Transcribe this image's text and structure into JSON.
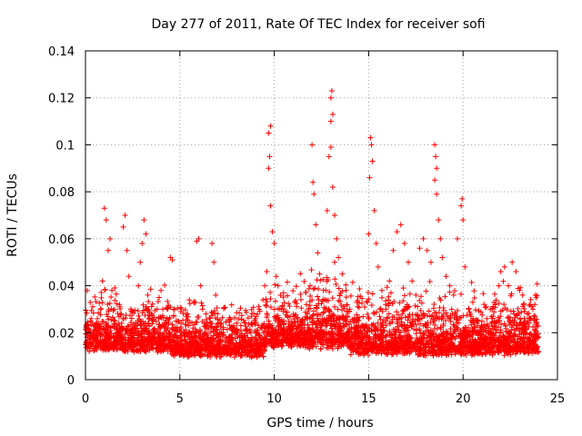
{
  "chart_data": {
    "type": "scatter",
    "title": "Day 277 of 2011, Rate Of TEC Index for receiver sofi",
    "xlabel": "GPS time / hours",
    "ylabel": "ROTI / TECUs",
    "xlim": [
      0,
      25
    ],
    "ylim": [
      0,
      0.14
    ],
    "xticks": [
      0,
      5,
      10,
      15,
      20,
      25
    ],
    "xtick_labels": [
      "0",
      "5",
      "10",
      "15",
      "20",
      "25"
    ],
    "yticks": [
      0,
      0.02,
      0.04,
      0.06,
      0.08,
      0.1,
      0.12,
      0.14
    ],
    "ytick_labels": [
      "0",
      "0.02",
      "0.04",
      "0.06",
      "0.08",
      "0.1",
      "0.12",
      "0.14"
    ],
    "grid": true,
    "marker": "+",
    "series": [
      {
        "color": "#ff0000",
        "points": [
          [
            0.0,
            0.015
          ],
          [
            0.1,
            0.022
          ],
          [
            0.2,
            0.012
          ],
          [
            0.3,
            0.026
          ],
          [
            0.4,
            0.018
          ],
          [
            0.5,
            0.014
          ],
          [
            0.6,
            0.02
          ],
          [
            0.7,
            0.024
          ],
          [
            0.8,
            0.03
          ],
          [
            0.9,
            0.042
          ],
          [
            1.0,
            0.073
          ],
          [
            1.1,
            0.068
          ],
          [
            1.2,
            0.055
          ],
          [
            1.3,
            0.06
          ],
          [
            1.4,
            0.038
          ],
          [
            1.5,
            0.025
          ],
          [
            1.6,
            0.018
          ],
          [
            1.7,
            0.022
          ],
          [
            1.8,
            0.032
          ],
          [
            1.9,
            0.028
          ],
          [
            2.0,
            0.065
          ],
          [
            2.1,
            0.07
          ],
          [
            2.2,
            0.055
          ],
          [
            2.3,
            0.044
          ],
          [
            2.4,
            0.03
          ],
          [
            2.5,
            0.018
          ],
          [
            2.6,
            0.022
          ],
          [
            2.7,
            0.02
          ],
          [
            2.8,
            0.04
          ],
          [
            2.9,
            0.05
          ],
          [
            3.0,
            0.058
          ],
          [
            3.1,
            0.068
          ],
          [
            3.2,
            0.062
          ],
          [
            3.3,
            0.036
          ],
          [
            3.4,
            0.02
          ],
          [
            3.5,
            0.028
          ],
          [
            3.6,
            0.025
          ],
          [
            3.7,
            0.018
          ],
          [
            3.8,
            0.03
          ],
          [
            3.9,
            0.035
          ],
          [
            4.0,
            0.038
          ],
          [
            4.1,
            0.03
          ],
          [
            4.2,
            0.022
          ],
          [
            4.3,
            0.018
          ],
          [
            4.4,
            0.02
          ],
          [
            4.5,
            0.052
          ],
          [
            4.6,
            0.051
          ],
          [
            4.7,
            0.03
          ],
          [
            4.8,
            0.025
          ],
          [
            4.9,
            0.018
          ],
          [
            5.0,
            0.014
          ],
          [
            5.2,
            0.02
          ],
          [
            5.4,
            0.028
          ],
          [
            5.5,
            0.034
          ],
          [
            5.7,
            0.022
          ],
          [
            5.8,
            0.018
          ],
          [
            5.9,
            0.059
          ],
          [
            6.0,
            0.06
          ],
          [
            6.1,
            0.04
          ],
          [
            6.2,
            0.03
          ],
          [
            6.4,
            0.022
          ],
          [
            6.5,
            0.018
          ],
          [
            6.6,
            0.016
          ],
          [
            6.7,
            0.058
          ],
          [
            6.8,
            0.05
          ],
          [
            6.9,
            0.036
          ],
          [
            7.0,
            0.028
          ],
          [
            7.2,
            0.02
          ],
          [
            7.4,
            0.016
          ],
          [
            7.6,
            0.018
          ],
          [
            7.8,
            0.022
          ],
          [
            8.0,
            0.02
          ],
          [
            8.2,
            0.014
          ],
          [
            8.4,
            0.016
          ],
          [
            8.6,
            0.018
          ],
          [
            8.8,
            0.024
          ],
          [
            9.0,
            0.026
          ],
          [
            9.2,
            0.03
          ],
          [
            9.4,
            0.034
          ],
          [
            9.5,
            0.04
          ],
          [
            9.6,
            0.046
          ],
          [
            9.7,
            0.105
          ],
          [
            9.8,
            0.108
          ],
          [
            9.75,
            0.095
          ],
          [
            9.7,
            0.09
          ],
          [
            9.8,
            0.074
          ],
          [
            9.9,
            0.063
          ],
          [
            10.0,
            0.058
          ],
          [
            10.1,
            0.044
          ],
          [
            10.2,
            0.04
          ],
          [
            10.3,
            0.03
          ],
          [
            10.5,
            0.025
          ],
          [
            10.7,
            0.02
          ],
          [
            10.9,
            0.018
          ],
          [
            11.1,
            0.016
          ],
          [
            11.3,
            0.02
          ],
          [
            11.5,
            0.024
          ],
          [
            11.7,
            0.032
          ],
          [
            11.9,
            0.04
          ],
          [
            12.0,
            0.1
          ],
          [
            12.05,
            0.084
          ],
          [
            12.1,
            0.079
          ],
          [
            12.2,
            0.066
          ],
          [
            12.3,
            0.054
          ],
          [
            12.4,
            0.045
          ],
          [
            12.6,
            0.038
          ],
          [
            12.8,
            0.072
          ],
          [
            12.9,
            0.095
          ],
          [
            13.0,
            0.12
          ],
          [
            13.05,
            0.123
          ],
          [
            13.1,
            0.113
          ],
          [
            13.0,
            0.11
          ],
          [
            13.0,
            0.099
          ],
          [
            13.1,
            0.082
          ],
          [
            13.2,
            0.07
          ],
          [
            13.3,
            0.06
          ],
          [
            13.4,
            0.052
          ],
          [
            13.6,
            0.045
          ],
          [
            13.8,
            0.038
          ],
          [
            14.0,
            0.03
          ],
          [
            14.2,
            0.025
          ],
          [
            14.4,
            0.02
          ],
          [
            14.6,
            0.018
          ],
          [
            14.8,
            0.022
          ],
          [
            15.0,
            0.062
          ],
          [
            15.05,
            0.086
          ],
          [
            15.1,
            0.103
          ],
          [
            15.15,
            0.1
          ],
          [
            15.2,
            0.093
          ],
          [
            15.3,
            0.072
          ],
          [
            15.4,
            0.058
          ],
          [
            15.5,
            0.048
          ],
          [
            15.7,
            0.038
          ],
          [
            15.9,
            0.032
          ],
          [
            16.1,
            0.042
          ],
          [
            16.3,
            0.055
          ],
          [
            16.5,
            0.063
          ],
          [
            16.7,
            0.066
          ],
          [
            16.9,
            0.058
          ],
          [
            17.1,
            0.05
          ],
          [
            17.3,
            0.042
          ],
          [
            17.5,
            0.036
          ],
          [
            17.7,
            0.056
          ],
          [
            17.9,
            0.06
          ],
          [
            18.1,
            0.055
          ],
          [
            18.3,
            0.05
          ],
          [
            18.5,
            0.1
          ],
          [
            18.55,
            0.095
          ],
          [
            18.6,
            0.09
          ],
          [
            18.5,
            0.085
          ],
          [
            18.6,
            0.079
          ],
          [
            18.7,
            0.068
          ],
          [
            18.8,
            0.06
          ],
          [
            18.9,
            0.052
          ],
          [
            19.1,
            0.044
          ],
          [
            19.3,
            0.04
          ],
          [
            19.5,
            0.036
          ],
          [
            19.7,
            0.06
          ],
          [
            19.9,
            0.074
          ],
          [
            19.95,
            0.077
          ],
          [
            20.0,
            0.068
          ],
          [
            20.1,
            0.048
          ],
          [
            20.3,
            0.03
          ],
          [
            20.5,
            0.025
          ],
          [
            20.7,
            0.02
          ],
          [
            20.9,
            0.018
          ],
          [
            21.1,
            0.016
          ],
          [
            21.3,
            0.02
          ],
          [
            21.5,
            0.024
          ],
          [
            21.7,
            0.032
          ],
          [
            21.9,
            0.04
          ],
          [
            22.0,
            0.046
          ],
          [
            22.2,
            0.048
          ],
          [
            22.4,
            0.04
          ],
          [
            22.6,
            0.05
          ],
          [
            22.8,
            0.046
          ],
          [
            23.0,
            0.038
          ],
          [
            23.2,
            0.032
          ],
          [
            23.4,
            0.028
          ],
          [
            23.6,
            0.026
          ],
          [
            23.7,
            0.03
          ],
          [
            23.8,
            0.032
          ],
          [
            23.9,
            0.018
          ],
          [
            23.95,
            0.014
          ],
          [
            24.0,
            0.012
          ]
        ]
      }
    ],
    "dense_band": {
      "segments": [
        [
          0.0,
          2.0,
          0.008,
          0.03
        ],
        [
          2.0,
          4.5,
          0.008,
          0.028
        ],
        [
          4.5,
          9.5,
          0.006,
          0.025
        ],
        [
          9.5,
          11.0,
          0.01,
          0.03
        ],
        [
          11.0,
          14.0,
          0.008,
          0.035
        ],
        [
          14.0,
          17.0,
          0.006,
          0.03
        ],
        [
          17.0,
          21.0,
          0.006,
          0.028
        ],
        [
          21.0,
          24.0,
          0.006,
          0.03
        ]
      ],
      "count": 4200
    }
  }
}
